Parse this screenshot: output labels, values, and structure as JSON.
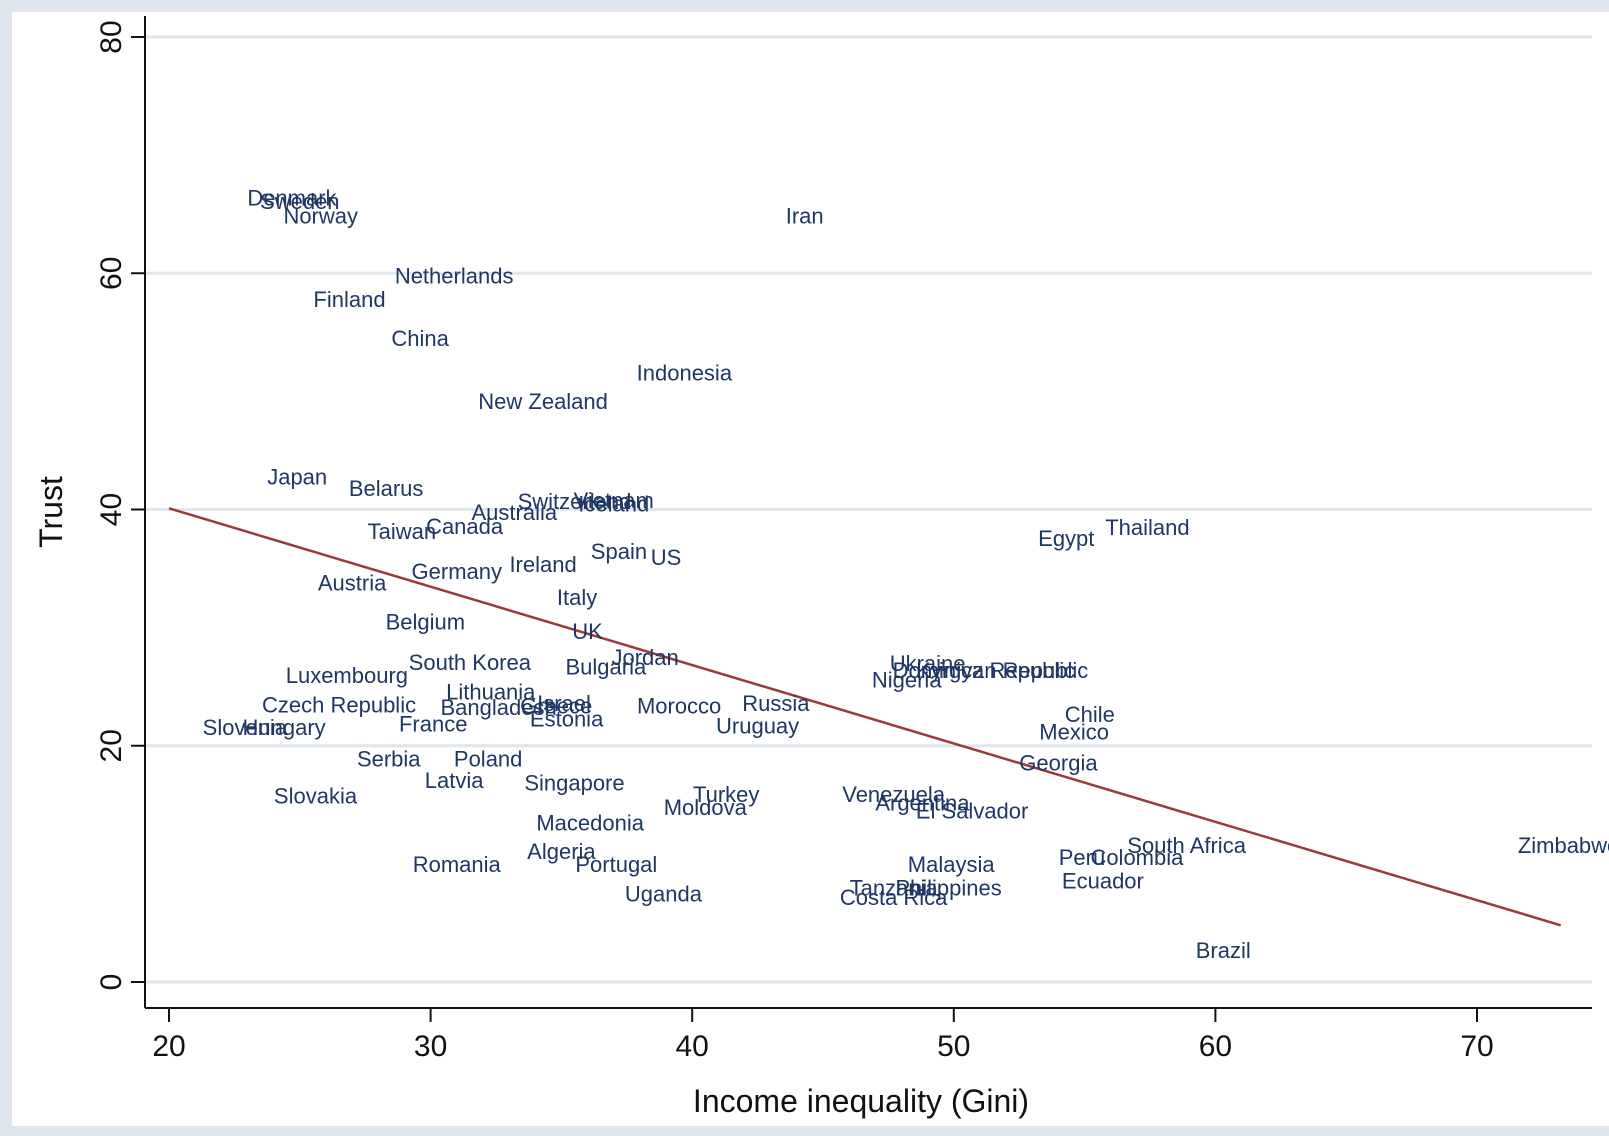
{
  "chart_data": {
    "type": "scatter",
    "title": "",
    "xlabel": "Income inequality (Gini)",
    "ylabel": "Trust",
    "xlim": [
      19,
      74.5
    ],
    "ylim": [
      -2,
      82
    ],
    "xticks": [
      20,
      30,
      40,
      50,
      60,
      70
    ],
    "yticks": [
      0,
      20,
      40,
      60,
      80
    ],
    "grid": "horizontal",
    "legend": "none",
    "marker": "label",
    "colors": {
      "page_background": "#dfe6ee",
      "plot_background": "#ffffff",
      "gridline": "#dfe6ee",
      "label": "#1f3763",
      "fit_line": "#9b3a3a",
      "axis": "#111111"
    },
    "fit_line": {
      "x": [
        20,
        73.2
      ],
      "y": [
        40.1,
        4.8
      ]
    },
    "points": [
      {
        "label": "Denmark",
        "x": 24.7,
        "y": 66.4
      },
      {
        "label": "Sweden",
        "x": 25.0,
        "y": 66.1
      },
      {
        "label": "Norway",
        "x": 25.8,
        "y": 64.9
      },
      {
        "label": "Iran",
        "x": 44.3,
        "y": 64.9
      },
      {
        "label": "Netherlands",
        "x": 30.9,
        "y": 59.8
      },
      {
        "label": "Finland",
        "x": 26.9,
        "y": 57.8
      },
      {
        "label": "China",
        "x": 29.6,
        "y": 54.5
      },
      {
        "label": "Indonesia",
        "x": 39.7,
        "y": 51.6
      },
      {
        "label": "New Zealand",
        "x": 34.3,
        "y": 49.2
      },
      {
        "label": "Japan",
        "x": 24.9,
        "y": 42.8
      },
      {
        "label": "Belarus",
        "x": 28.3,
        "y": 41.8
      },
      {
        "label": "Vietnam",
        "x": 37.0,
        "y": 40.8
      },
      {
        "label": "Switzerland",
        "x": 35.5,
        "y": 40.7
      },
      {
        "label": "Iceland",
        "x": 37.0,
        "y": 40.5
      },
      {
        "label": "Australia",
        "x": 33.2,
        "y": 39.8
      },
      {
        "label": "Canada",
        "x": 31.3,
        "y": 38.6
      },
      {
        "label": "Taiwan",
        "x": 28.9,
        "y": 38.2
      },
      {
        "label": "Egypt",
        "x": 54.3,
        "y": 37.6
      },
      {
        "label": "Thailand",
        "x": 57.4,
        "y": 38.5
      },
      {
        "label": "Spain",
        "x": 37.2,
        "y": 36.5
      },
      {
        "label": "US",
        "x": 39.0,
        "y": 36.0
      },
      {
        "label": "Ireland",
        "x": 34.3,
        "y": 35.4
      },
      {
        "label": "Germany",
        "x": 31.0,
        "y": 34.8
      },
      {
        "label": "Austria",
        "x": 27.0,
        "y": 33.8
      },
      {
        "label": "Italy",
        "x": 35.6,
        "y": 32.6
      },
      {
        "label": "Belgium",
        "x": 29.8,
        "y": 30.5
      },
      {
        "label": "UK",
        "x": 36.0,
        "y": 29.7
      },
      {
        "label": "Jordan",
        "x": 38.2,
        "y": 27.5
      },
      {
        "label": "South Korea",
        "x": 31.5,
        "y": 27.1
      },
      {
        "label": "Bulgaria",
        "x": 36.7,
        "y": 26.7
      },
      {
        "label": "Ukraine",
        "x": 49.0,
        "y": 27.0
      },
      {
        "label": "Dominican Republic",
        "x": 51.4,
        "y": 26.4
      },
      {
        "label": "Kyrgyz Republic",
        "x": 51.6,
        "y": 26.4
      },
      {
        "label": "Nigeria",
        "x": 48.2,
        "y": 25.6
      },
      {
        "label": "Luxembourg",
        "x": 26.8,
        "y": 26.0
      },
      {
        "label": "Lithuania",
        "x": 32.3,
        "y": 24.6
      },
      {
        "label": "Czech Republic",
        "x": 26.5,
        "y": 23.5
      },
      {
        "label": "Bangladesh",
        "x": 32.6,
        "y": 23.3
      },
      {
        "label": "Greece",
        "x": 34.8,
        "y": 23.4
      },
      {
        "label": "Israel",
        "x": 35.1,
        "y": 23.6
      },
      {
        "label": "Morocco",
        "x": 39.5,
        "y": 23.4
      },
      {
        "label": "Russia",
        "x": 43.2,
        "y": 23.6
      },
      {
        "label": "Estonia",
        "x": 35.2,
        "y": 22.3
      },
      {
        "label": "Chile",
        "x": 55.2,
        "y": 22.7
      },
      {
        "label": "Uruguay",
        "x": 42.5,
        "y": 21.7
      },
      {
        "label": "France",
        "x": 30.1,
        "y": 21.9
      },
      {
        "label": "Slovenia",
        "x": 22.9,
        "y": 21.6
      },
      {
        "label": "Hungary",
        "x": 24.4,
        "y": 21.6
      },
      {
        "label": "Mexico",
        "x": 54.6,
        "y": 21.2
      },
      {
        "label": "Serbia",
        "x": 28.4,
        "y": 18.9
      },
      {
        "label": "Poland",
        "x": 32.2,
        "y": 18.9
      },
      {
        "label": "Georgia",
        "x": 54.0,
        "y": 18.6
      },
      {
        "label": "Latvia",
        "x": 30.9,
        "y": 17.1
      },
      {
        "label": "Singapore",
        "x": 35.5,
        "y": 16.9
      },
      {
        "label": "Slovakia",
        "x": 25.6,
        "y": 15.8
      },
      {
        "label": "Turkey",
        "x": 41.3,
        "y": 15.9
      },
      {
        "label": "Moldova",
        "x": 40.5,
        "y": 14.8
      },
      {
        "label": "Venezuela",
        "x": 47.7,
        "y": 15.9
      },
      {
        "label": "Argentina",
        "x": 48.8,
        "y": 15.2
      },
      {
        "label": "El Salvador",
        "x": 50.7,
        "y": 14.5
      },
      {
        "label": "Macedonia",
        "x": 36.1,
        "y": 13.5
      },
      {
        "label": "South Africa",
        "x": 58.9,
        "y": 11.6
      },
      {
        "label": "Zimbabwe",
        "x": 73.5,
        "y": 11.6
      },
      {
        "label": "Algeria",
        "x": 35.0,
        "y": 11.1
      },
      {
        "label": "Portugal",
        "x": 37.1,
        "y": 10.0
      },
      {
        "label": "Romania",
        "x": 31.0,
        "y": 10.0
      },
      {
        "label": "Malaysia",
        "x": 49.9,
        "y": 10.0
      },
      {
        "label": "Peru",
        "x": 54.9,
        "y": 10.6
      },
      {
        "label": "Colombia",
        "x": 57.0,
        "y": 10.6
      },
      {
        "label": "Ecuador",
        "x": 55.7,
        "y": 8.6
      },
      {
        "label": "Tanzania",
        "x": 47.7,
        "y": 8.0
      },
      {
        "label": "Philippines",
        "x": 49.8,
        "y": 8.0
      },
      {
        "label": "Costa Rica",
        "x": 47.7,
        "y": 7.2
      },
      {
        "label": "Uganda",
        "x": 38.9,
        "y": 7.5
      },
      {
        "label": "Brazil",
        "x": 60.3,
        "y": 2.7
      }
    ]
  }
}
